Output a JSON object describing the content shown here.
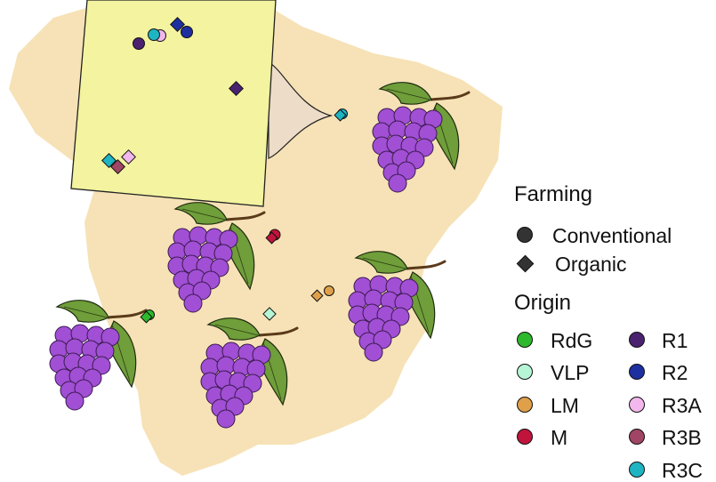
{
  "legend": {
    "farming_title": "Farming",
    "farming_items": [
      {
        "label": "Conventional",
        "shape": "circle"
      },
      {
        "label": "Organic",
        "shape": "diamond"
      }
    ],
    "origin_title": "Origin",
    "origin_items": [
      {
        "label": "RdG",
        "color": "#2db82d"
      },
      {
        "label": "VLP",
        "color": "#b6f5d6"
      },
      {
        "label": "LM",
        "color": "#e0a04a"
      },
      {
        "label": "M",
        "color": "#c0143c"
      },
      {
        "label": "R1",
        "color": "#4a2270"
      },
      {
        "label": "R2",
        "color": "#1e2fa0"
      },
      {
        "label": "R3A",
        "color": "#f2b7ec"
      },
      {
        "label": "R3B",
        "color": "#a04565"
      },
      {
        "label": "R3C",
        "color": "#1fb4c2"
      }
    ]
  },
  "colors": {
    "land": "#f6e2b6",
    "inset_fill": "#f3f3a0",
    "callout": "#ecdcc8",
    "grape": "#a14fd4",
    "grape_stroke": "#3a1a50",
    "leaf": "#6f9e3a",
    "stem": "#5a3a1a"
  },
  "icons": [
    "grape-cluster-icon"
  ]
}
